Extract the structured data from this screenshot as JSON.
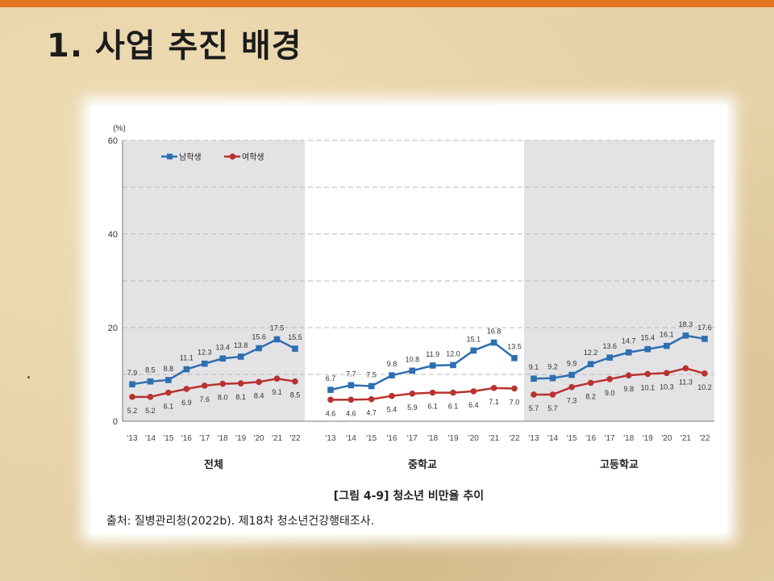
{
  "slide": {
    "title": "1. 사업 추진 배경"
  },
  "figure": {
    "caption": "[그림 4-9] 청소년 비만율 추이",
    "source": "출처: 질병관리청(2022b). 제18차 청소년건강행태조사."
  },
  "colors": {
    "male": "#2d6fb0",
    "female": "#b8322e",
    "accent_bar": "#e2761f",
    "panel_shade": "#e3e3e6"
  },
  "chart_data": {
    "type": "line",
    "y_unit_label": "(%)",
    "ylim": [
      0,
      60
    ],
    "y_ticks": [
      0,
      20,
      40,
      60
    ],
    "grid": "dashed horizontal every 10",
    "legend_position": "top-left",
    "x": [
      "'13",
      "'14",
      "'15",
      "'16",
      "'17",
      "'18",
      "'19",
      "'20",
      "'21",
      "'22"
    ],
    "panels": [
      {
        "label": "전체",
        "shaded": true,
        "series": [
          {
            "name": "남학생",
            "values": [
              7.9,
              8.5,
              8.8,
              11.1,
              12.3,
              13.4,
              13.8,
              15.6,
              17.5,
              15.5
            ]
          },
          {
            "name": "여학생",
            "values": [
              5.2,
              5.2,
              6.1,
              6.9,
              7.6,
              8.0,
              8.1,
              8.4,
              9.1,
              8.5
            ]
          }
        ]
      },
      {
        "label": "중학교",
        "shaded": false,
        "series": [
          {
            "name": "남학생",
            "values": [
              6.7,
              7.7,
              7.5,
              9.8,
              10.8,
              11.9,
              12.0,
              15.1,
              16.8,
              13.5
            ]
          },
          {
            "name": "여학생",
            "values": [
              4.6,
              4.6,
              4.7,
              5.4,
              5.9,
              6.1,
              6.1,
              6.4,
              7.1,
              7.0
            ]
          }
        ]
      },
      {
        "label": "고등학교",
        "shaded": true,
        "series": [
          {
            "name": "남학생",
            "values": [
              9.1,
              9.2,
              9.9,
              12.2,
              13.6,
              14.7,
              15.4,
              16.1,
              18.3,
              17.6
            ]
          },
          {
            "name": "여학생",
            "values": [
              5.7,
              5.7,
              7.3,
              8.2,
              9.0,
              9.8,
              10.1,
              10.3,
              11.3,
              10.2
            ]
          }
        ]
      }
    ]
  }
}
